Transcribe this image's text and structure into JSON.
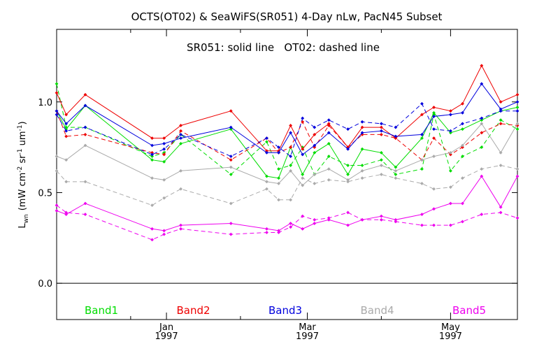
{
  "chart_data": {
    "type": "line",
    "title": "OCTS(OT02) & SeaWiFS(SR051) 4-Day nLw, PacN45 Subset",
    "annotation": "SR051: solid line   OT02: dashed line",
    "ylabel_main": "L",
    "ylabel_sub": "wn",
    "ylabel_units": "(mW cm",
    "ylabel_units_exp1": "-2",
    "ylabel_units_mid": " sr",
    "ylabel_units_exp2": "-1",
    "ylabel_units_mid2": " um",
    "ylabel_units_exp3": "-1",
    "ylabel_units_end": ")",
    "ylim": [
      -0.2,
      1.4
    ],
    "yticks": [
      {
        "v": 0.0,
        "label": "0.0"
      },
      {
        "v": 0.5,
        "label": "0.5"
      },
      {
        "v": 1.0,
        "label": "1.0"
      }
    ],
    "x_axis_range_days": [
      0,
      193
    ],
    "xticks": [
      {
        "day": 46,
        "month": "Jan",
        "year": "1997"
      },
      {
        "day": 105,
        "month": "Mar",
        "year": "1997"
      },
      {
        "day": 165,
        "month": "May",
        "year": "1997"
      }
    ],
    "x_minor_days": [
      31,
      77,
      136
    ],
    "zero_line": true,
    "x": [
      0,
      4,
      12,
      40,
      45,
      52,
      73,
      88,
      93,
      98,
      103,
      108,
      114,
      122,
      128,
      136,
      142,
      153,
      158,
      165,
      170,
      178,
      186,
      193
    ],
    "series": [
      {
        "name": "Band1",
        "color": "#00dd00",
        "style": "solid",
        "values": [
          0.95,
          0.85,
          0.98,
          0.68,
          0.67,
          0.77,
          0.85,
          0.59,
          0.58,
          0.75,
          0.6,
          0.72,
          0.77,
          0.6,
          0.74,
          0.72,
          0.64,
          0.8,
          0.94,
          0.83,
          0.85,
          0.9,
          0.95,
          0.97
        ]
      },
      {
        "name": "Band1",
        "color": "#00dd00",
        "style": "dashed",
        "values": [
          1.1,
          0.86,
          0.86,
          0.7,
          0.72,
          0.82,
          0.6,
          0.78,
          0.63,
          0.65,
          0.75,
          0.6,
          0.7,
          0.65,
          0.65,
          0.68,
          0.6,
          0.63,
          0.93,
          0.62,
          0.7,
          0.75,
          0.9,
          0.85
        ]
      },
      {
        "name": "Band2",
        "color": "#ee0000",
        "style": "solid",
        "values": [
          1.05,
          0.93,
          1.04,
          0.8,
          0.8,
          0.87,
          0.95,
          0.73,
          0.73,
          0.87,
          0.74,
          0.82,
          0.88,
          0.75,
          0.86,
          0.86,
          0.8,
          0.93,
          0.97,
          0.95,
          0.99,
          1.2,
          1.0,
          1.04
        ]
      },
      {
        "name": "Band2",
        "color": "#ee0000",
        "style": "dashed",
        "values": [
          0.95,
          0.81,
          0.82,
          0.72,
          0.71,
          0.84,
          0.68,
          0.8,
          0.72,
          0.75,
          0.89,
          0.75,
          0.87,
          0.75,
          0.82,
          0.82,
          0.8,
          0.68,
          0.8,
          0.71,
          0.75,
          0.83,
          0.88,
          0.87
        ]
      },
      {
        "name": "Band3",
        "color": "#0000dd",
        "style": "solid",
        "values": [
          0.95,
          0.88,
          0.98,
          0.76,
          0.77,
          0.8,
          0.86,
          0.72,
          0.72,
          0.83,
          0.71,
          0.76,
          0.83,
          0.74,
          0.83,
          0.84,
          0.81,
          0.82,
          0.92,
          0.93,
          0.94,
          1.1,
          0.96,
          1.0
        ]
      },
      {
        "name": "Band3",
        "color": "#0000dd",
        "style": "dashed",
        "values": [
          0.93,
          0.84,
          0.86,
          0.71,
          0.74,
          0.82,
          0.7,
          0.8,
          0.75,
          0.7,
          0.91,
          0.86,
          0.9,
          0.85,
          0.89,
          0.88,
          0.86,
          0.99,
          0.85,
          0.84,
          0.88,
          0.91,
          0.95,
          0.95
        ]
      },
      {
        "name": "Band4",
        "color": "#aaaaaa",
        "style": "solid",
        "values": [
          0.7,
          0.68,
          0.76,
          0.58,
          0.57,
          0.62,
          0.64,
          0.56,
          0.55,
          0.62,
          0.54,
          0.6,
          0.63,
          0.57,
          0.62,
          0.65,
          0.62,
          0.68,
          0.7,
          0.72,
          0.76,
          0.88,
          0.72,
          0.88
        ]
      },
      {
        "name": "Band4",
        "color": "#aaaaaa",
        "style": "dashed",
        "values": [
          0.62,
          0.56,
          0.56,
          0.43,
          0.47,
          0.52,
          0.44,
          0.52,
          0.46,
          0.46,
          0.58,
          0.55,
          0.57,
          0.56,
          0.58,
          0.6,
          0.58,
          0.55,
          0.52,
          0.53,
          0.58,
          0.63,
          0.65,
          0.63
        ]
      },
      {
        "name": "Band5",
        "color": "#ee00ee",
        "style": "solid",
        "values": [
          0.4,
          0.38,
          0.44,
          0.3,
          0.29,
          0.32,
          0.33,
          0.3,
          0.29,
          0.33,
          0.3,
          0.33,
          0.35,
          0.32,
          0.35,
          0.37,
          0.35,
          0.38,
          0.41,
          0.44,
          0.44,
          0.59,
          0.42,
          0.59
        ]
      },
      {
        "name": "Band5",
        "color": "#ee00ee",
        "style": "dashed",
        "values": [
          0.43,
          0.39,
          0.38,
          0.24,
          0.27,
          0.3,
          0.27,
          0.28,
          0.28,
          0.31,
          0.37,
          0.35,
          0.36,
          0.39,
          0.35,
          0.35,
          0.34,
          0.32,
          0.32,
          0.32,
          0.34,
          0.38,
          0.39,
          0.36
        ]
      }
    ],
    "legend": [
      {
        "label": "Band1",
        "color": "#00dd00"
      },
      {
        "label": "Band2",
        "color": "#ee0000"
      },
      {
        "label": "Band3",
        "color": "#0000dd"
      },
      {
        "label": "Band4",
        "color": "#aaaaaa"
      },
      {
        "label": "Band5",
        "color": "#ee00ee"
      }
    ],
    "legend_placement": "bottom-inside"
  }
}
